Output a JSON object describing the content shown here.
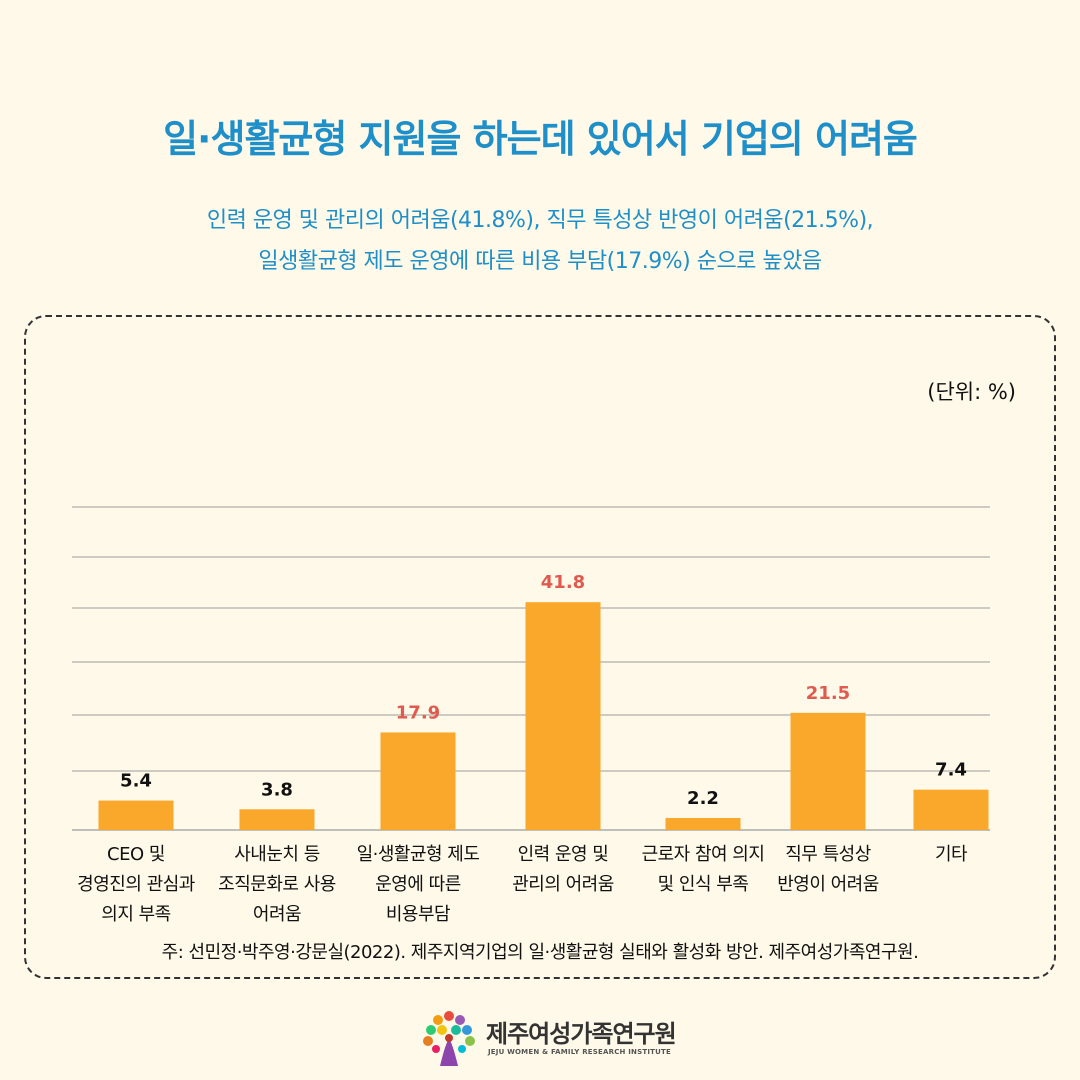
{
  "title": "일·생활균형 지원을 하는데 있어서 기업의 어려움",
  "subtitle": {
    "line1": "인력 운영 및 관리의 어려움(41.8%), 직무 특성상 반영이 어려움(21.5%),",
    "line2": "일생활균형 제도 운영에 따른 비용 부담(17.9%) 순으로 높았음"
  },
  "unit_label": "(단위: %)",
  "footnote": "주: 선민정·박주영·강문실(2022). 제주지역기업의 일·생활균형 실태와 활성화 방안. 제주여성가족연구원.",
  "logo": {
    "name": "제주여성가족연구원",
    "subname": "JEJU WOMEN & FAMILY RESEARCH INSTITUTE"
  },
  "colors": {
    "bar": "#F9A82B",
    "highlight_label": "#E05A4F",
    "normal_label": "#111111",
    "gridline": "#9A9A9A",
    "title": "#1E8FC9"
  },
  "chart_data": {
    "type": "bar",
    "title": "",
    "xlabel": "",
    "ylabel": "",
    "ylim": [
      0,
      50
    ],
    "grid": true,
    "categories": [
      [
        "CEO 및",
        "경영진의 관심과",
        "의지 부족"
      ],
      [
        "사내눈치 등",
        "조직문화로 사용",
        "어려움"
      ],
      [
        "일·생활균형 제도",
        "운영에 따른",
        "비용부담"
      ],
      [
        "인력 운영 및",
        "관리의 어려움"
      ],
      [
        "근로자 참여 의지",
        "및 인식 부족"
      ],
      [
        "직무 특성상",
        "반영이 어려움"
      ],
      [
        "기타"
      ]
    ],
    "values": [
      5.4,
      3.8,
      17.9,
      41.8,
      2.2,
      21.5,
      7.4
    ],
    "value_labels": [
      "5.4",
      "3.8",
      "17.9",
      "41.8",
      "2.2",
      "21.5",
      "7.4"
    ],
    "highlighted": [
      false,
      false,
      true,
      true,
      false,
      true,
      false
    ]
  }
}
